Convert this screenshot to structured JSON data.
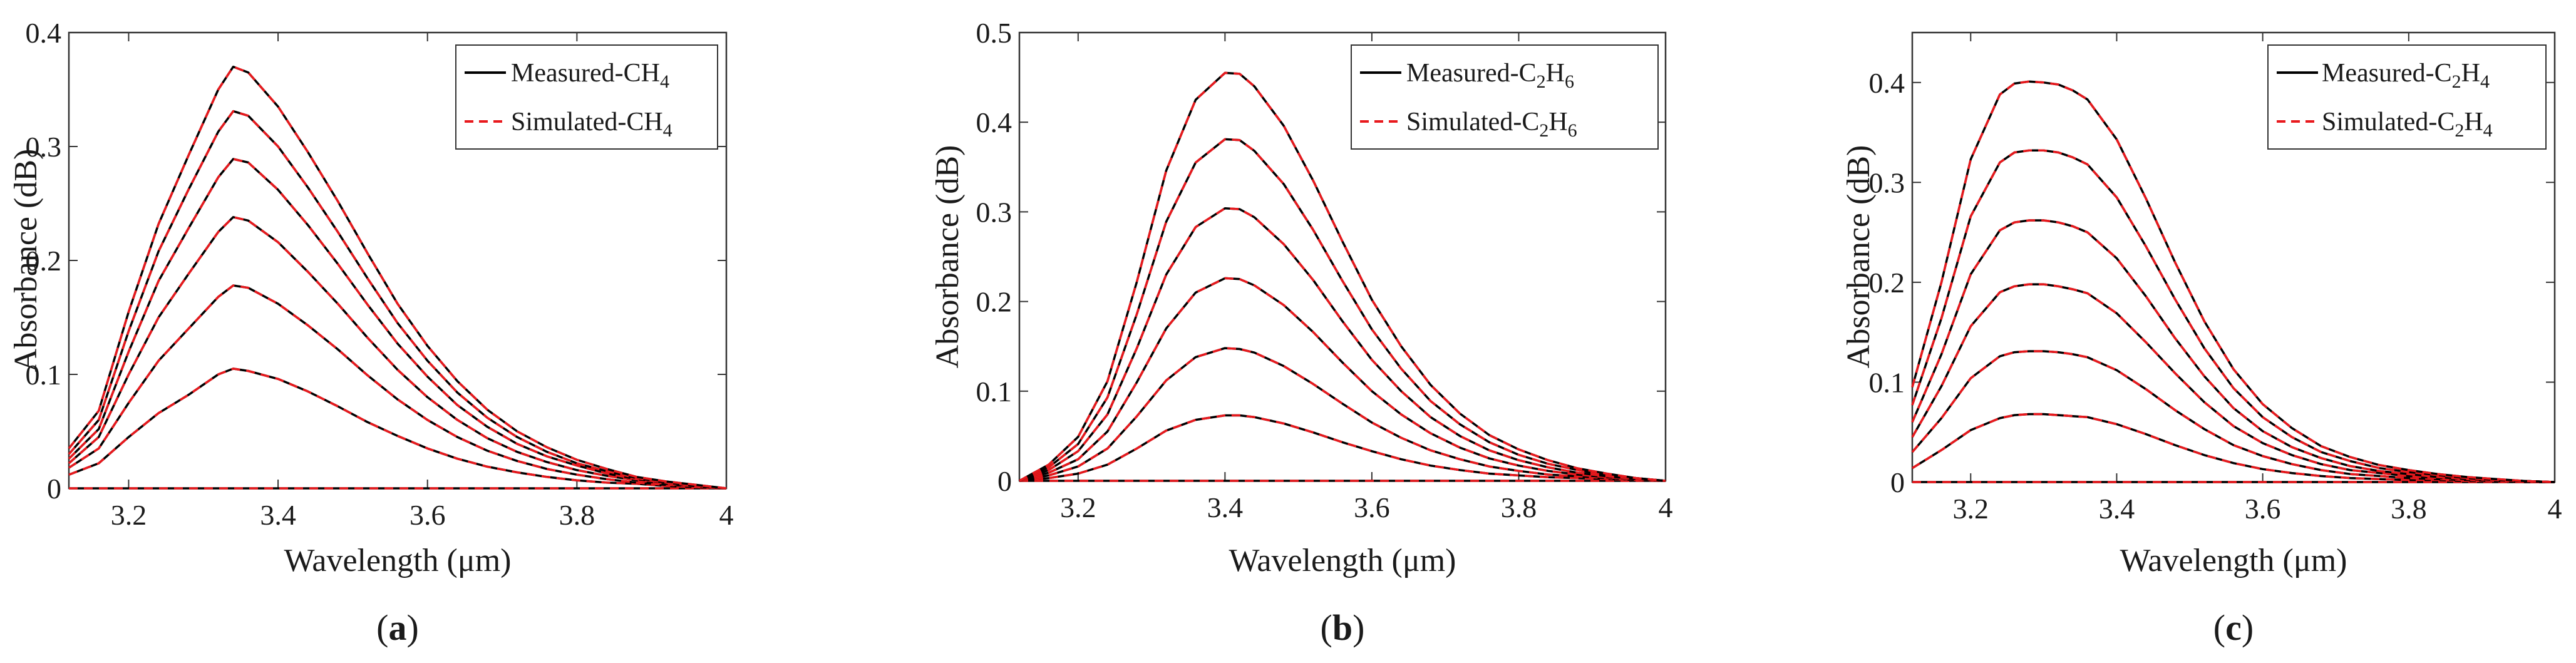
{
  "panels": [
    {
      "caption_letter": "a",
      "xlabel": "Wavelength (μm)",
      "ylabel": "Absorbance (dB)",
      "legend": {
        "measured_prefix": "Measured-",
        "simulated_prefix": "Simulated-",
        "formula": [
          {
            "t": "CH"
          },
          {
            "t": "4",
            "sub": true
          }
        ]
      }
    },
    {
      "caption_letter": "b",
      "xlabel": "Wavelength (μm)",
      "ylabel": "Absorbance (dB)",
      "legend": {
        "measured_prefix": "Measured-",
        "simulated_prefix": "Simulated-",
        "formula": [
          {
            "t": "C"
          },
          {
            "t": "2",
            "sub": true
          },
          {
            "t": "H"
          },
          {
            "t": "6",
            "sub": true
          }
        ]
      }
    },
    {
      "caption_letter": "c",
      "xlabel": "Wavelength (μm)",
      "ylabel": "Absorbance (dB)",
      "legend": {
        "measured_prefix": "Measured-",
        "simulated_prefix": "Simulated-",
        "formula": [
          {
            "t": "C"
          },
          {
            "t": "2",
            "sub": true
          },
          {
            "t": "H"
          },
          {
            "t": "4",
            "sub": true
          }
        ]
      }
    }
  ],
  "colors": {
    "measured": "#000000",
    "simulated": "#e8191d",
    "axis": "#333333"
  },
  "chart_data": [
    {
      "type": "line",
      "xlim": [
        3.12,
        4.0
      ],
      "ylim": [
        0,
        0.4
      ],
      "xticks": [
        3.2,
        3.4,
        3.6,
        3.8,
        4.0
      ],
      "xtick_labels": [
        "3.2",
        "3.4",
        "3.6",
        "3.8",
        "4"
      ],
      "yticks": [
        0,
        0.1,
        0.2,
        0.3,
        0.4
      ],
      "ytick_labels": [
        "0",
        "0.1",
        "0.2",
        "0.3",
        "0.4"
      ],
      "legend_position": "top-right",
      "grid": false,
      "x": [
        3.12,
        3.16,
        3.2,
        3.24,
        3.28,
        3.32,
        3.34,
        3.36,
        3.4,
        3.44,
        3.48,
        3.52,
        3.56,
        3.6,
        3.64,
        3.68,
        3.72,
        3.76,
        3.8,
        3.84,
        3.88,
        3.92,
        3.96,
        4.0
      ],
      "series": [
        {
          "name": "Measured-CH4 (0)",
          "values": [
            0,
            0,
            0,
            0,
            0,
            0,
            0,
            0,
            0,
            0,
            0,
            0,
            0,
            0,
            0,
            0,
            0,
            0,
            0,
            0,
            0,
            0,
            0,
            0
          ]
        },
        {
          "name": "Measured-CH4 (1)",
          "values": [
            0.012,
            0.022,
            0.045,
            0.066,
            0.082,
            0.1,
            0.105,
            0.103,
            0.096,
            0.085,
            0.072,
            0.058,
            0.046,
            0.035,
            0.026,
            0.019,
            0.014,
            0.01,
            0.007,
            0.005,
            0.004,
            0.002,
            0.001,
            0.0
          ]
        },
        {
          "name": "Measured-CH4 (2)",
          "values": [
            0.018,
            0.035,
            0.075,
            0.112,
            0.14,
            0.168,
            0.178,
            0.176,
            0.162,
            0.143,
            0.122,
            0.099,
            0.078,
            0.06,
            0.045,
            0.033,
            0.024,
            0.017,
            0.012,
            0.008,
            0.005,
            0.003,
            0.002,
            0.0
          ]
        },
        {
          "name": "Measured-CH4 (3)",
          "values": [
            0.022,
            0.045,
            0.1,
            0.15,
            0.188,
            0.225,
            0.238,
            0.235,
            0.216,
            0.19,
            0.162,
            0.132,
            0.104,
            0.08,
            0.06,
            0.044,
            0.032,
            0.023,
            0.016,
            0.011,
            0.007,
            0.004,
            0.002,
            0.0
          ]
        },
        {
          "name": "Measured-CH4 (4)",
          "values": [
            0.026,
            0.052,
            0.12,
            0.182,
            0.228,
            0.273,
            0.289,
            0.286,
            0.262,
            0.231,
            0.197,
            0.161,
            0.127,
            0.098,
            0.073,
            0.054,
            0.039,
            0.028,
            0.02,
            0.013,
            0.008,
            0.005,
            0.002,
            0.0
          ]
        },
        {
          "name": "Measured-CH4 (5)",
          "values": [
            0.03,
            0.06,
            0.138,
            0.208,
            0.262,
            0.313,
            0.331,
            0.327,
            0.3,
            0.264,
            0.225,
            0.184,
            0.145,
            0.112,
            0.084,
            0.062,
            0.045,
            0.032,
            0.022,
            0.015,
            0.009,
            0.005,
            0.002,
            0.0
          ]
        },
        {
          "name": "Measured-CH4 (6)",
          "values": [
            0.035,
            0.068,
            0.155,
            0.232,
            0.292,
            0.35,
            0.37,
            0.365,
            0.335,
            0.295,
            0.252,
            0.206,
            0.162,
            0.125,
            0.094,
            0.069,
            0.05,
            0.036,
            0.025,
            0.017,
            0.01,
            0.006,
            0.003,
            0.0
          ]
        }
      ]
    },
    {
      "type": "line",
      "xlim": [
        3.12,
        4.0
      ],
      "ylim": [
        0,
        0.5
      ],
      "xticks": [
        3.2,
        3.4,
        3.6,
        3.8,
        4.0
      ],
      "xtick_labels": [
        "3.2",
        "3.4",
        "3.6",
        "3.8",
        "4"
      ],
      "yticks": [
        0,
        0.1,
        0.2,
        0.3,
        0.4,
        0.5
      ],
      "ytick_labels": [
        "0",
        "0.1",
        "0.2",
        "0.3",
        "0.4",
        "0.5"
      ],
      "legend_position": "top-right",
      "grid": false,
      "x": [
        3.12,
        3.16,
        3.2,
        3.24,
        3.28,
        3.32,
        3.36,
        3.4,
        3.42,
        3.44,
        3.48,
        3.52,
        3.56,
        3.6,
        3.64,
        3.68,
        3.72,
        3.76,
        3.8,
        3.84,
        3.88,
        3.92,
        3.96,
        4.0
      ],
      "series": [
        {
          "name": "Measured-C2H6 (0)",
          "values": [
            0,
            0,
            0,
            0,
            0,
            0,
            0,
            0,
            0,
            0,
            0,
            0,
            0,
            0,
            0,
            0,
            0,
            0,
            0,
            0,
            0,
            0,
            0,
            0
          ]
        },
        {
          "name": "Measured-C2H6 (1)",
          "values": [
            0.0,
            0.003,
            0.008,
            0.018,
            0.036,
            0.056,
            0.068,
            0.073,
            0.073,
            0.071,
            0.064,
            0.054,
            0.043,
            0.033,
            0.024,
            0.017,
            0.012,
            0.008,
            0.006,
            0.004,
            0.003,
            0.002,
            0.001,
            0.0
          ]
        },
        {
          "name": "Measured-C2H6 (2)",
          "values": [
            0.0,
            0.006,
            0.016,
            0.036,
            0.072,
            0.112,
            0.138,
            0.148,
            0.147,
            0.143,
            0.128,
            0.108,
            0.086,
            0.065,
            0.048,
            0.034,
            0.024,
            0.016,
            0.011,
            0.007,
            0.005,
            0.003,
            0.001,
            0.0
          ]
        },
        {
          "name": "Measured-C2H6 (3)",
          "values": [
            0.0,
            0.009,
            0.024,
            0.055,
            0.11,
            0.17,
            0.21,
            0.226,
            0.225,
            0.218,
            0.196,
            0.166,
            0.132,
            0.1,
            0.074,
            0.053,
            0.037,
            0.025,
            0.017,
            0.011,
            0.007,
            0.004,
            0.002,
            0.0
          ]
        },
        {
          "name": "Measured-C2H6 (4)",
          "values": [
            0.0,
            0.012,
            0.033,
            0.074,
            0.148,
            0.23,
            0.283,
            0.304,
            0.303,
            0.294,
            0.264,
            0.224,
            0.178,
            0.135,
            0.1,
            0.071,
            0.05,
            0.034,
            0.023,
            0.015,
            0.009,
            0.005,
            0.002,
            0.0
          ]
        },
        {
          "name": "Measured-C2H6 (5)",
          "values": [
            0.0,
            0.015,
            0.041,
            0.093,
            0.186,
            0.289,
            0.355,
            0.381,
            0.38,
            0.368,
            0.331,
            0.28,
            0.223,
            0.169,
            0.125,
            0.089,
            0.063,
            0.043,
            0.029,
            0.019,
            0.012,
            0.006,
            0.003,
            0.0
          ]
        },
        {
          "name": "Measured-C2H6 (6)",
          "values": [
            0.0,
            0.018,
            0.049,
            0.111,
            0.222,
            0.346,
            0.425,
            0.455,
            0.454,
            0.44,
            0.396,
            0.335,
            0.267,
            0.202,
            0.15,
            0.107,
            0.075,
            0.051,
            0.035,
            0.023,
            0.014,
            0.008,
            0.003,
            0.0
          ]
        }
      ]
    },
    {
      "type": "line",
      "xlim": [
        3.12,
        4.0
      ],
      "ylim": [
        0,
        0.45
      ],
      "xticks": [
        3.2,
        3.4,
        3.6,
        3.8,
        4.0
      ],
      "xtick_labels": [
        "3.2",
        "3.4",
        "3.6",
        "3.8",
        "4"
      ],
      "yticks": [
        0,
        0.1,
        0.2,
        0.3,
        0.4
      ],
      "ytick_labels": [
        "0",
        "0.1",
        "0.2",
        "0.3",
        "0.4"
      ],
      "legend_position": "top-right",
      "grid": false,
      "x": [
        3.12,
        3.16,
        3.2,
        3.24,
        3.26,
        3.28,
        3.3,
        3.32,
        3.34,
        3.36,
        3.4,
        3.44,
        3.48,
        3.52,
        3.56,
        3.6,
        3.64,
        3.68,
        3.72,
        3.76,
        3.8,
        3.84,
        3.88,
        3.92,
        3.96,
        4.0
      ],
      "series": [
        {
          "name": "Measured-C2H4 (0)",
          "values": [
            0,
            0,
            0,
            0,
            0,
            0,
            0,
            0,
            0,
            0,
            0,
            0,
            0,
            0,
            0,
            0,
            0,
            0,
            0,
            0,
            0,
            0,
            0,
            0,
            0,
            0
          ]
        },
        {
          "name": "Measured-C2H4 (1)",
          "values": [
            0.014,
            0.032,
            0.052,
            0.064,
            0.067,
            0.068,
            0.068,
            0.067,
            0.066,
            0.065,
            0.058,
            0.048,
            0.037,
            0.027,
            0.019,
            0.013,
            0.009,
            0.006,
            0.004,
            0.003,
            0.002,
            0.002,
            0.001,
            0.001,
            0.0,
            0.0
          ]
        },
        {
          "name": "Measured-C2H4 (2)",
          "values": [
            0.03,
            0.064,
            0.104,
            0.126,
            0.13,
            0.131,
            0.131,
            0.13,
            0.128,
            0.125,
            0.112,
            0.093,
            0.072,
            0.053,
            0.037,
            0.026,
            0.018,
            0.012,
            0.008,
            0.006,
            0.004,
            0.003,
            0.002,
            0.001,
            0.0,
            0.0
          ]
        },
        {
          "name": "Measured-C2H4 (3)",
          "values": [
            0.045,
            0.096,
            0.156,
            0.19,
            0.196,
            0.198,
            0.198,
            0.196,
            0.193,
            0.189,
            0.169,
            0.14,
            0.109,
            0.08,
            0.056,
            0.039,
            0.027,
            0.018,
            0.012,
            0.009,
            0.006,
            0.004,
            0.003,
            0.002,
            0.001,
            0.0
          ]
        },
        {
          "name": "Measured-C2H4 (4)",
          "values": [
            0.06,
            0.128,
            0.208,
            0.252,
            0.26,
            0.262,
            0.262,
            0.26,
            0.256,
            0.25,
            0.224,
            0.186,
            0.144,
            0.106,
            0.074,
            0.051,
            0.035,
            0.024,
            0.016,
            0.011,
            0.008,
            0.005,
            0.003,
            0.002,
            0.001,
            0.0
          ]
        },
        {
          "name": "Measured-C2H4 (5)",
          "values": [
            0.077,
            0.164,
            0.266,
            0.32,
            0.33,
            0.332,
            0.332,
            0.33,
            0.325,
            0.318,
            0.285,
            0.236,
            0.183,
            0.134,
            0.094,
            0.065,
            0.045,
            0.03,
            0.021,
            0.014,
            0.01,
            0.007,
            0.004,
            0.002,
            0.001,
            0.0
          ]
        },
        {
          "name": "Measured-C2H4 (6)",
          "values": [
            0.095,
            0.2,
            0.323,
            0.388,
            0.399,
            0.401,
            0.4,
            0.398,
            0.392,
            0.383,
            0.343,
            0.284,
            0.22,
            0.161,
            0.113,
            0.078,
            0.054,
            0.036,
            0.025,
            0.017,
            0.012,
            0.008,
            0.005,
            0.003,
            0.001,
            0.0
          ]
        }
      ]
    }
  ]
}
